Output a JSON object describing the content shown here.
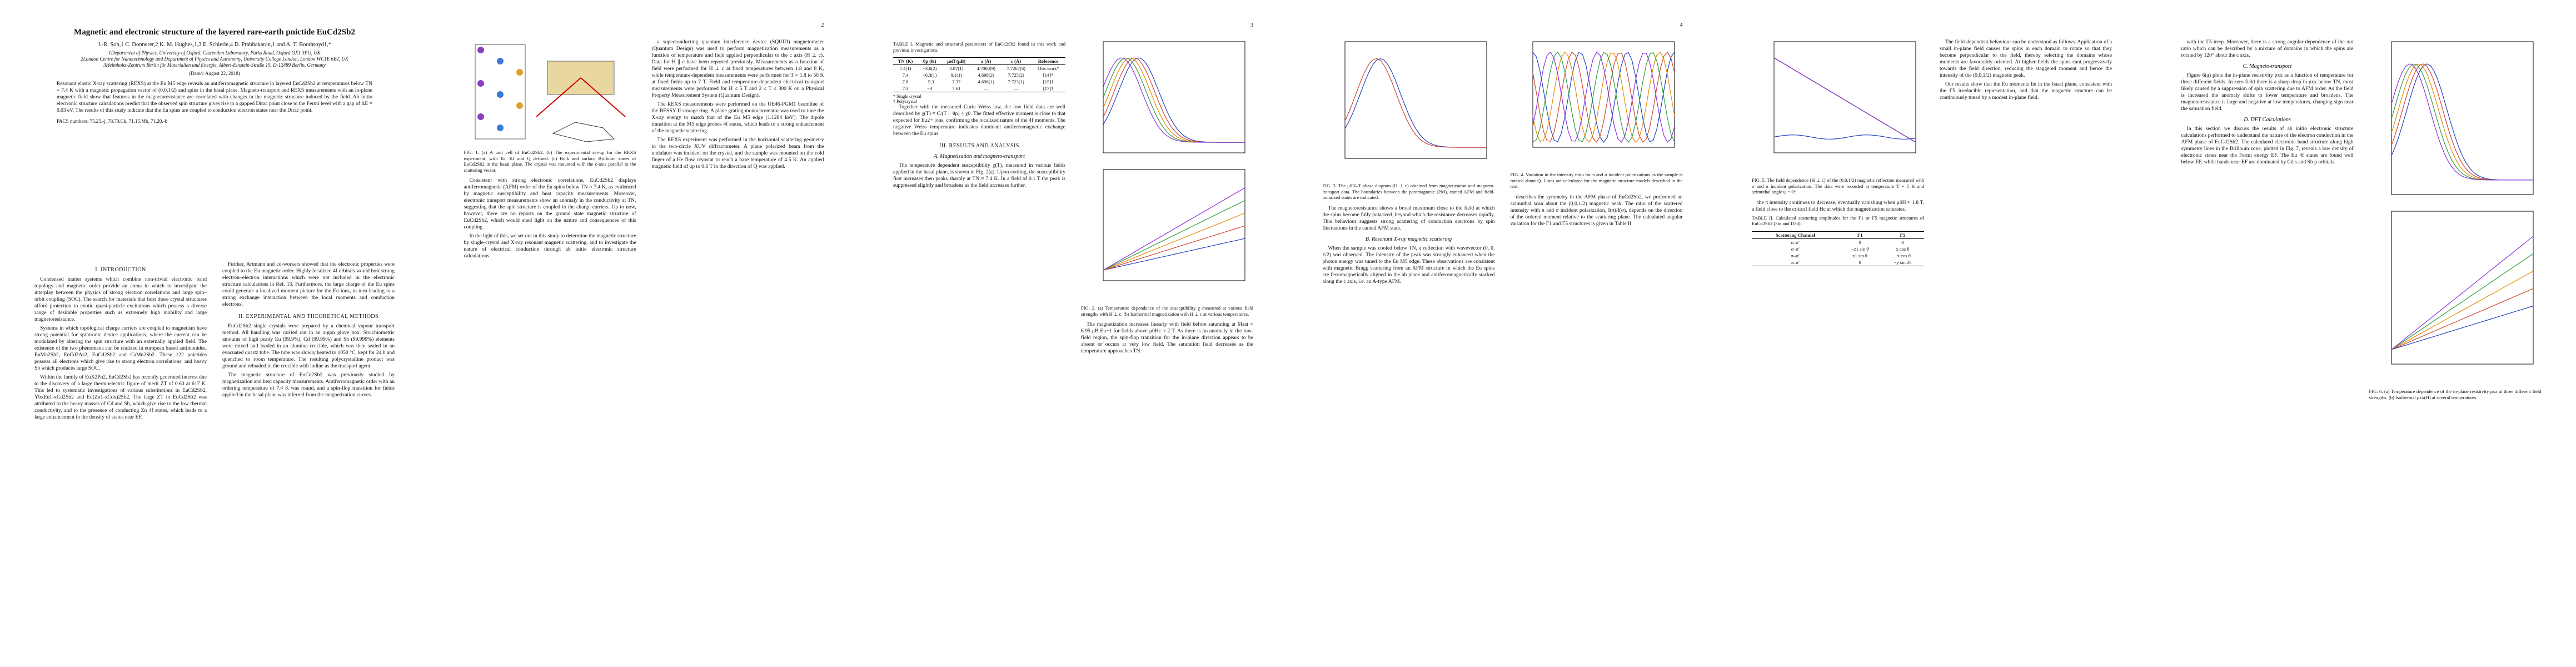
{
  "stamp": "arXiv:1806.00559v3 [cond-mat.str-el] 21 Aug 2018",
  "pages": [
    {
      "number": null,
      "header": {
        "title": "Magnetic and electronic structure of the layered rare-earth pnictide EuCd2Sb2",
        "authors": "J.-R. Soh,1 C. Donnerer,2 K. M. Hughes,1,3 E. Schierle,4 D. Prabhakaran,1 and A. T. Boothroyd1,*",
        "affiliations": [
          "1Department of Physics, University of Oxford, Clarendon Laboratory, Parks Road, Oxford OX1 3PU, UK",
          "2London Centre for Nanotechnology and Department of Physics and Astronomy, University College London, London WC1E 6BT, UK",
          "3Helmholtz-Zentrum Berlin für Materialien und Energie, Albert-Einstein-Straße 15, D-12489 Berlin, Germany"
        ],
        "date": "(Dated: August 22, 2018)",
        "abstract": "Resonant elastic X-ray scattering (REXS) at the Eu M5 edge reveals an antiferromagnetic structure in layered EuCd2Sb2 at temperatures below TN = 7.4 K with a magnetic propagation vector of (0,0,1/2) and spins in the basal plane. Magneto-transport and REXS measurements with an in-plane magnetic field show that features in the magnetoresistance are correlated with changes in the magnetic structure induced by the field. Ab initio electronic structure calculations predict that the observed spin structure gives rise to a gapped Dirac point close to the Fermi level with a gap of ΔE = 0.03 eV. The results of this study indicate that the Eu spins are coupled to conduction electron states near the Dirac point.",
        "pacs": "PACS numbers: 75.25.-j, 78.70.Ck, 71.15.Mb, 71.20.-b"
      },
      "columns": [
        [
          {
            "kind": "heading",
            "text": "I.   INTRODUCTION"
          },
          {
            "kind": "para",
            "text": "Condensed matter systems which combine non-trivial electronic band topology and magnetic order provide an arena in which to investigate the interplay between the physics of strong electron correlations and large spin–orbit coupling (SOC). The search for materials that host these crystal structures afford protection to exotic quasi-particle excitations which possess a diverse range of desirable properties such as extremely high mobility and large magnetoresistance."
          },
          {
            "kind": "para",
            "text": "Systems in which topological charge carriers are coupled to magnetism have strong potential for spintronic device applications, where the current can be modulated by altering the spin structure with an externally applied field. The existence of the two phenomena can be realized in european based antimonides, EuMn2Sb2, EuCd2As2, EuCd2Sb2 and CaMn2Sb2. These 122 pnictides possess all electrons which give rise to strong electron correlations, and heavy Sb which produces large SOC."
          },
          {
            "kind": "para",
            "text": "Within the family of EuX2Pn2, EuCd2Sb2 has recently generated interest due to the discovery of a large thermoelectric figure of merit ZT of 0.60 at 617 K. This led to systematic investigations of various substitutions in EuCd2Sb2, YbxEu1-xCd2Sb2 and Eu(Zn1-xCdx)2Sb2. The large ZT in EuCd2Sb2 was attributed to the heavy masses of Cd and Sb, which give rise to the low thermal conductivity, and to the presence of conducting Zn 4f states, which leads to a large enhancement in the density of states near EF."
          }
        ],
        [
          {
            "kind": "para",
            "text": "Further, Artmann and co-workers showed that the electronic properties were coupled to the Eu magnetic order. Highly localized 4f orbitals would host strong electron–electron interactions which were not included in the electronic structure calculations in Ref. 13. Furthermore, the large charge of the Eu spins could generate a localized moment picture for the Eu ions, in turn leading to a strong exchange interaction between the local moments and conduction electrons."
          },
          {
            "kind": "heading",
            "text": "II.   EXPERIMENTAL AND THEORETICAL METHODS"
          },
          {
            "kind": "para",
            "text": "EuCd2Sb2 single crystals were prepared by a chemical vapour transport method. All handling was carried out in an argon glove box. Stoichiometric amounts of high purity Eu (99.9%), Cd (99.99%) and Sb (99.999%) elements were mixed and loaded in an alumina crucible, which was then sealed in an evacuated quartz tube. The tube was slowly heated to 1050 °C, kept for 24 h and quenched to room temperature. The resulting polycrystalline product was ground and reloaded in the crucible with iodine as the transport agent."
          },
          {
            "kind": "para",
            "text": "The magnetic structure of EuCd2Sb2 was previously studied by magnetization and heat capacity measurements. Antiferromagnetic order with an ordering temperature of 7.4 K was found, and a spin-flop transition for fields applied in the basal plane was inferred from the magnetization curves."
          }
        ]
      ]
    },
    {
      "number": "2",
      "columns": [
        [
          {
            "kind": "figure",
            "caption": "FIG. 1. (a) A unit cell of EuCd2Sb2. (b) The experimental set-up for the REXS experiment, with Ki, Kf and Q defined. (c) Bulk and surface Brillouin zones of EuCd2Sb2 in the basal plane. The crystal was mounted with the c-axis parallel to the scattering vector."
          },
          {
            "kind": "para",
            "text": "Consistent with strong electronic correlations, EuCd2Sb2 displays antiferromagnetic (AFM) order of the Eu spins below TN ≈ 7.4 K, as evidenced by magnetic susceptibility and heat capacity measurements. Moreover, electronic transport measurements show an anomaly in the conductivity at TN, suggesting that the spin structure is coupled to the charge carriers. Up to now, however, there are no reports on the ground state magnetic structure of EuCd2Sb2, which would shed light on the nature and consequences of this coupling."
          },
          {
            "kind": "para",
            "text": "In the light of this, we set out in this study to determine the magnetic structure by single-crystal and X-ray resonant magnetic scattering, and to investigate the nature of electrical conduction through ab initio electronic structure calculations."
          }
        ],
        [
          {
            "kind": "para",
            "text": "a superconducting quantum interference device (SQUID) magnetometer (Quantum Design) was used to perform magnetization measurements as a function of temperature and field applied perpendicular to the c axis (H ⊥ c). Data for H ∥ c have been reported previously. Measurements as a function of field were performed for H ⊥ c at fixed temperatures between 1.8 and 8 K, while temperature-dependent measurements were performed for T = 1.8 to 50 K at fixed fields up to 7 T. Field and temperature-dependent electrical transport measurements were performed for H ≤ 5 T and 2 ≤ T ≤ 300 K on a Physical Property Measurement System (Quantum Design)."
          },
          {
            "kind": "para",
            "text": "The REXS measurements were performed on the UE46-PGM1 beamline of the BESSY II storage ring. A plane grating monochromator was used to tune the X-ray energy to match that of the Eu M5 edge (1.1284 keV). The dipole transition at the M5 edge probes 4f states, which leads to a strong enhancement of the magnetic scattering."
          },
          {
            "kind": "para",
            "text": "The REXS experiment was performed in the horizontal scattering geometry in the two-circle XUV diffractometer. A plane polarized beam from the undulator was incident on the crystal, and the sample was mounted on the cold finger of a He flow cryostat to reach a base temperature of 4.5 K. An applied magnetic field of up to 0.6 T in the direction of Q was applied."
          }
        ]
      ]
    },
    {
      "number": "3",
      "columns": [
        [
          {
            "kind": "table",
            "caption": "TABLE I. Magnetic and structural parameters of EuCd2Sb2 found in this work and previous investigations.",
            "head": [
              "TN (K)",
              "θp (K)",
              "μeff (μB)",
              "a (Å)",
              "c (Å)",
              "Reference"
            ],
            "rows": [
              [
                "7.4(1)",
                "−3.6(2)",
                "8.07(1)",
                "4.7000(9)",
                "7.7267(6)",
                "This work*"
              ],
              [
                "7.4",
                "−6.3(1)",
                "8.1(1)",
                "4.698(2)",
                "7.725(2)",
                "[14]*"
              ],
              [
                "7.8",
                "−5.3",
                "7.37",
                "4.698(1)",
                "7.723(1)",
                "[15]†"
              ],
              [
                "7.3",
                "−3",
                "7.61",
                "—",
                "—",
                "[17]†"
              ]
            ],
            "notes": [
              "* Single crystal",
              "† Polycrystal"
            ]
          },
          {
            "kind": "para",
            "text": "Together with the measured Curie–Weiss law, the low field data are well described by χ(T) = C/(T − θp) + χ0. The fitted effective moment is close to that expected for Eu2+ ions, confirming the localized nature of the 4f moments. The negative Weiss temperature indicates dominant antiferromagnetic exchange between the Eu spins."
          },
          {
            "kind": "heading",
            "text": "III.   RESULTS AND ANALYSIS"
          },
          {
            "kind": "subheading",
            "text": "A.   Magnetization and magneto-transport"
          },
          {
            "kind": "para",
            "text": "The temperature dependent susceptibility χ(T), measured in various fields applied in the basal plane, is shown in Fig. 2(a). Upon cooling, the susceptibility first increases then peaks sharply at TN ≈ 7.4 K. In a field of 0.1 T the peak is suppressed slightly and broadens as the field increases further."
          }
        ],
        [
          {
            "kind": "figure",
            "caption": "FIG. 2. (a) Temperature dependence of the susceptibility χ measured at various field strengths with H ⊥ c. (b) Isothermal magnetization with H ⊥ c at various temperatures."
          },
          {
            "kind": "para",
            "text": "The magnetization increases linearly with field before saturating at Msat ≈ 6.95 μB Eu−1 for fields above μ0Hc ≈ 2 T. As there is no anomaly in the low-field region, the spin-flop transition for the in-plane direction appears to be absent or occurs at very low field. The saturation field decreases as the temperature approaches TN."
          }
        ]
      ]
    },
    {
      "number": "4",
      "columns": [
        [
          {
            "kind": "figure",
            "caption": "FIG. 3. The μ0H–T phase diagram (H ⊥ c) obtained from magnetization and magneto-transport data. The boundaries between the paramagnetic (PM), canted AFM and field-polarized states are indicated."
          },
          {
            "kind": "para",
            "text": "The magnetoresistance shows a broad maximum close to the field at which the spins become fully polarized, beyond which the resistance decreases rapidly. This behaviour suggests strong scattering of conduction electrons by spin fluctuations in the canted AFM state."
          },
          {
            "kind": "subheading",
            "text": "B.   Resonant X-ray magnetic scattering"
          },
          {
            "kind": "para",
            "text": "When the sample was cooled below TN, a reflection with wavevector (0, 0, 1/2) was observed. The intensity of the peak was strongly enhanced when the photon energy was tuned to the Eu M5 edge. These observations are consistent with magnetic Bragg scattering from an AFM structure in which the Eu spins are ferromagnetically aligned in the ab plane and antiferromagnetically stacked along the c axis, i.e. an A-type AFM."
          }
        ],
        [
          {
            "kind": "figure",
            "caption": "FIG. 4. Variation in the intensity ratio for π and σ incident polarizations as the sample is rotated about Q. Lines are calculated for the magnetic structure models described in the text."
          },
          {
            "kind": "para",
            "text": "describes the symmetry in the AFM phase of EuCd2Sb2, we performed an azimuthal scan about the (0,0,1/2) magnetic peak. The ratio of the scattered intensity with π and σ incident polarization, I(π)/I(σ), depends on the direction of the ordered moment relative to the scattering plane. The calculated angular variation for the Γ1 and Γ5 structures is given in Table II."
          }
        ]
      ]
    },
    {
      "number": null,
      "columns": [
        [
          {
            "kind": "figure",
            "caption": "FIG. 5. The field dependence (H ⊥ c) of the (0,0,1/2) magnetic reflection measured with σ and π incident polarization. The data were recorded at temperature T = 5 K and azimuthal angle ψ = 0°."
          },
          {
            "kind": "para",
            "text": "the π intensity continues to decrease, eventually vanishing when μ0H ≈ 1.8 T, a field close to the critical field Hc at which the magnetization saturates."
          },
          {
            "kind": "table",
            "caption": "TABLE II. Calculated scattering amplitudes for the Γ1 or Γ5 magnetic structures of EuCd2Sb2 (3m and D3d).",
            "head": [
              "Scattering Channel",
              "Γ1",
              "Γ5"
            ],
            "rows": [
              [
                "σ–σ′",
                "0",
                "0"
              ],
              [
                "σ–π′",
                "−z1 sin θ",
                "x cos θ"
              ],
              [
                "π–σ′",
                "z1 sin θ",
                "−x cos θ"
              ],
              [
                "π–π′",
                "0",
                "−y sin 2θ"
              ]
            ],
            "notes": []
          }
        ],
        [
          {
            "kind": "para",
            "text": "The field-dependent behaviour can be understood as follows. Application of a small in-plane field causes the spins in each domain to rotate so that they become perpendicular to the field, thereby selecting the domains whose moments are favourably oriented. At higher fields the spins cant progressively towards the field direction, reducing the staggered moment and hence the intensity of the (0,0,1/2) magnetic peak."
          },
          {
            "kind": "para",
            "text": "Our results show that the Eu moments lie in the basal plane, consistent with the Γ5 irreducible representation, and that the magnetic structure can be continuously tuned by a modest in-plane field."
          }
        ]
      ]
    },
    {
      "number": null,
      "columns": [
        [
          {
            "kind": "para",
            "text": "with the Γ5 irrep. Moreover, there is a strong angular dependence of the π/σ ratio which can be described by a mixture of domains in which the spins are rotated by 120° about the c axis."
          },
          {
            "kind": "subheading",
            "text": "C.   Magneto-transport"
          },
          {
            "kind": "para",
            "text": "Figure 6(a) plots the in-plane resistivity ρxx as a function of temperature for three different fields. In zero field there is a sharp drop in ρxx below TN, most likely caused by a suppression of spin scattering due to AFM order. As the field is increased the anomaly shifts to lower temperature and broadens. The magnetoresistance is large and negative at low temperatures, changing sign near the saturation field."
          },
          {
            "kind": "subheading",
            "text": "D.   DFT Calculations"
          },
          {
            "kind": "para",
            "text": "In this section we discuss the results of ab initio electronic structure calculations performed to understand the nature of the electron conduction in the AFM phase of EuCd2Sb2. The calculated electronic band structure along high symmetry lines in the Brillouin zone, plotted in Fig. 7, reveals a low density of electronic states near the Fermi energy EF. The Eu 4f states are found well below EF, while bands near EF are dominated by Cd s and Sb p orbitals."
          }
        ],
        [
          {
            "kind": "figure",
            "caption": "FIG. 6. (a) Temperature dependence of the in-plane resistivity ρxx at three different field strengths. (b) Isothermal ρxx(H) at several temperatures."
          }
        ]
      ]
    }
  ]
}
